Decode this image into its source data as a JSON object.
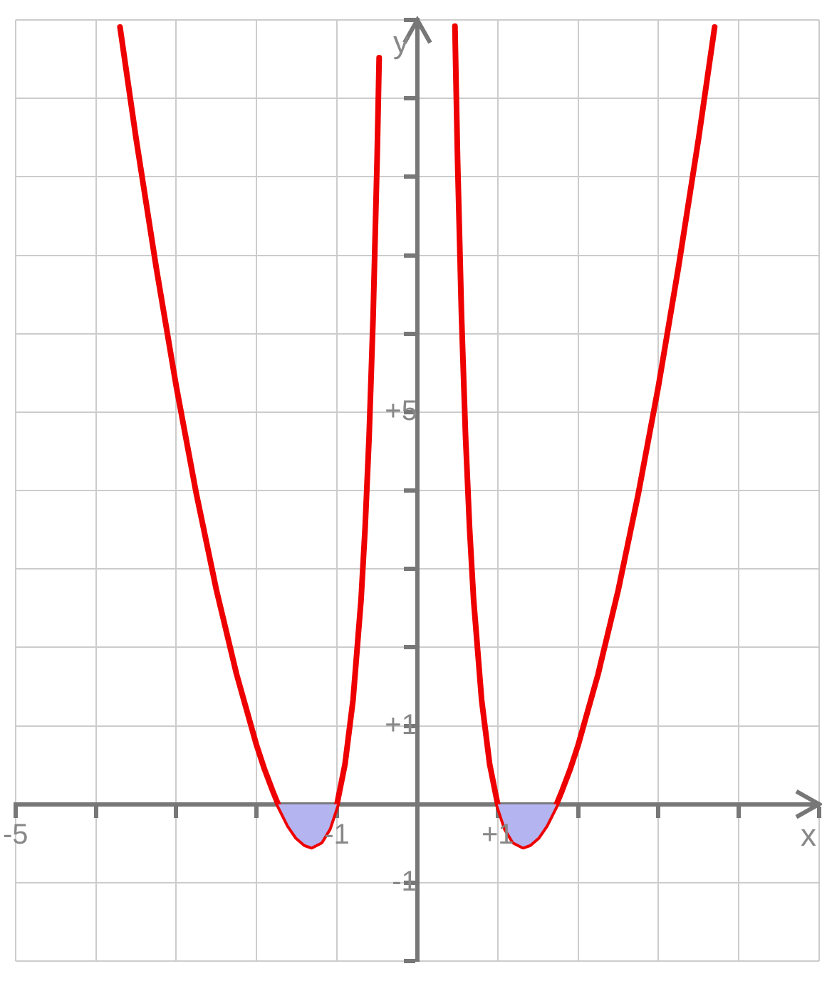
{
  "chart_data": {
    "type": "line",
    "xlabel": "x",
    "ylabel": "y",
    "xlim": [
      -5,
      5
    ],
    "ylim": [
      -2,
      10
    ],
    "xticks": [
      {
        "value": -5,
        "label": "-5"
      },
      {
        "value": -4,
        "label": null
      },
      {
        "value": -3,
        "label": null
      },
      {
        "value": -2,
        "label": null
      },
      {
        "value": -1,
        "label": "-1"
      },
      {
        "value": 0,
        "label": null
      },
      {
        "value": 1,
        "label": "+1"
      },
      {
        "value": 2,
        "label": null
      },
      {
        "value": 3,
        "label": null
      },
      {
        "value": 4,
        "label": null
      },
      {
        "value": 5,
        "label": null
      }
    ],
    "yticks": [
      {
        "value": -2,
        "label": null
      },
      {
        "value": -1,
        "label": "-1"
      },
      {
        "value": 0,
        "label": null
      },
      {
        "value": 1,
        "label": "+1"
      },
      {
        "value": 2,
        "label": null
      },
      {
        "value": 3,
        "label": null
      },
      {
        "value": 4,
        "label": null
      },
      {
        "value": 5,
        "label": "+5"
      },
      {
        "value": 6,
        "label": null
      },
      {
        "value": 7,
        "label": null
      },
      {
        "value": 8,
        "label": null
      },
      {
        "value": 9,
        "label": null
      },
      {
        "value": 10,
        "label": null
      }
    ],
    "grid": true,
    "legend": false,
    "marker": "none",
    "line_style": "solid",
    "series": [
      {
        "type": "area",
        "color": "#b4b4f0",
        "x": [
          -1.732,
          -1.6,
          -1.5,
          -1.4,
          -1.316,
          -1.2,
          -1.1,
          -1
        ],
        "values": [
          0,
          -0.27,
          -0.42,
          -0.51,
          -0.54,
          -0.48,
          -0.31,
          0
        ]
      },
      {
        "type": "area",
        "color": "#b4b4f0",
        "x": [
          1,
          1.1,
          1.2,
          1.316,
          1.4,
          1.5,
          1.6,
          1.732
        ],
        "values": [
          0,
          -0.31,
          -0.48,
          -0.54,
          -0.51,
          -0.42,
          -0.27,
          0
        ]
      },
      {
        "type": "line",
        "color": "#ee0000",
        "x": [
          -3.7,
          -3.5,
          -3.25,
          -3,
          -2.75,
          -2.5,
          -2.25,
          -2,
          -1.9,
          -1.8,
          -1.732,
          -1.6,
          -1.5,
          -1.4,
          -1.316,
          -1.2,
          -1.1,
          -1,
          -0.9,
          -0.8,
          -0.7,
          -0.65,
          -0.6,
          -0.55,
          -0.5,
          -0.475
        ],
        "values": [
          9.91,
          8.49,
          6.85,
          5.33,
          3.96,
          2.73,
          1.66,
          0.75,
          0.44,
          0.17,
          0,
          -0.27,
          -0.42,
          -0.51,
          -0.54,
          -0.48,
          -0.31,
          0,
          0.51,
          1.33,
          2.61,
          3.52,
          4.69,
          6.22,
          8.25,
          9.52
        ]
      },
      {
        "type": "line",
        "color": "#ee0000",
        "x": [
          0.468,
          0.5,
          0.55,
          0.6,
          0.65,
          0.7,
          0.8,
          0.9,
          1,
          1.1,
          1.2,
          1.316,
          1.4,
          1.5,
          1.6,
          1.732,
          1.8,
          1.9,
          2,
          2.25,
          2.5,
          2.75,
          3,
          3.25,
          3.5,
          3.7
        ],
        "values": [
          9.92,
          8.25,
          6.22,
          4.69,
          3.52,
          2.61,
          1.33,
          0.51,
          0,
          -0.31,
          -0.48,
          -0.54,
          -0.51,
          -0.42,
          -0.27,
          0,
          0.17,
          0.44,
          0.75,
          1.66,
          2.73,
          3.96,
          5.33,
          6.85,
          8.49,
          9.91
        ]
      }
    ]
  }
}
